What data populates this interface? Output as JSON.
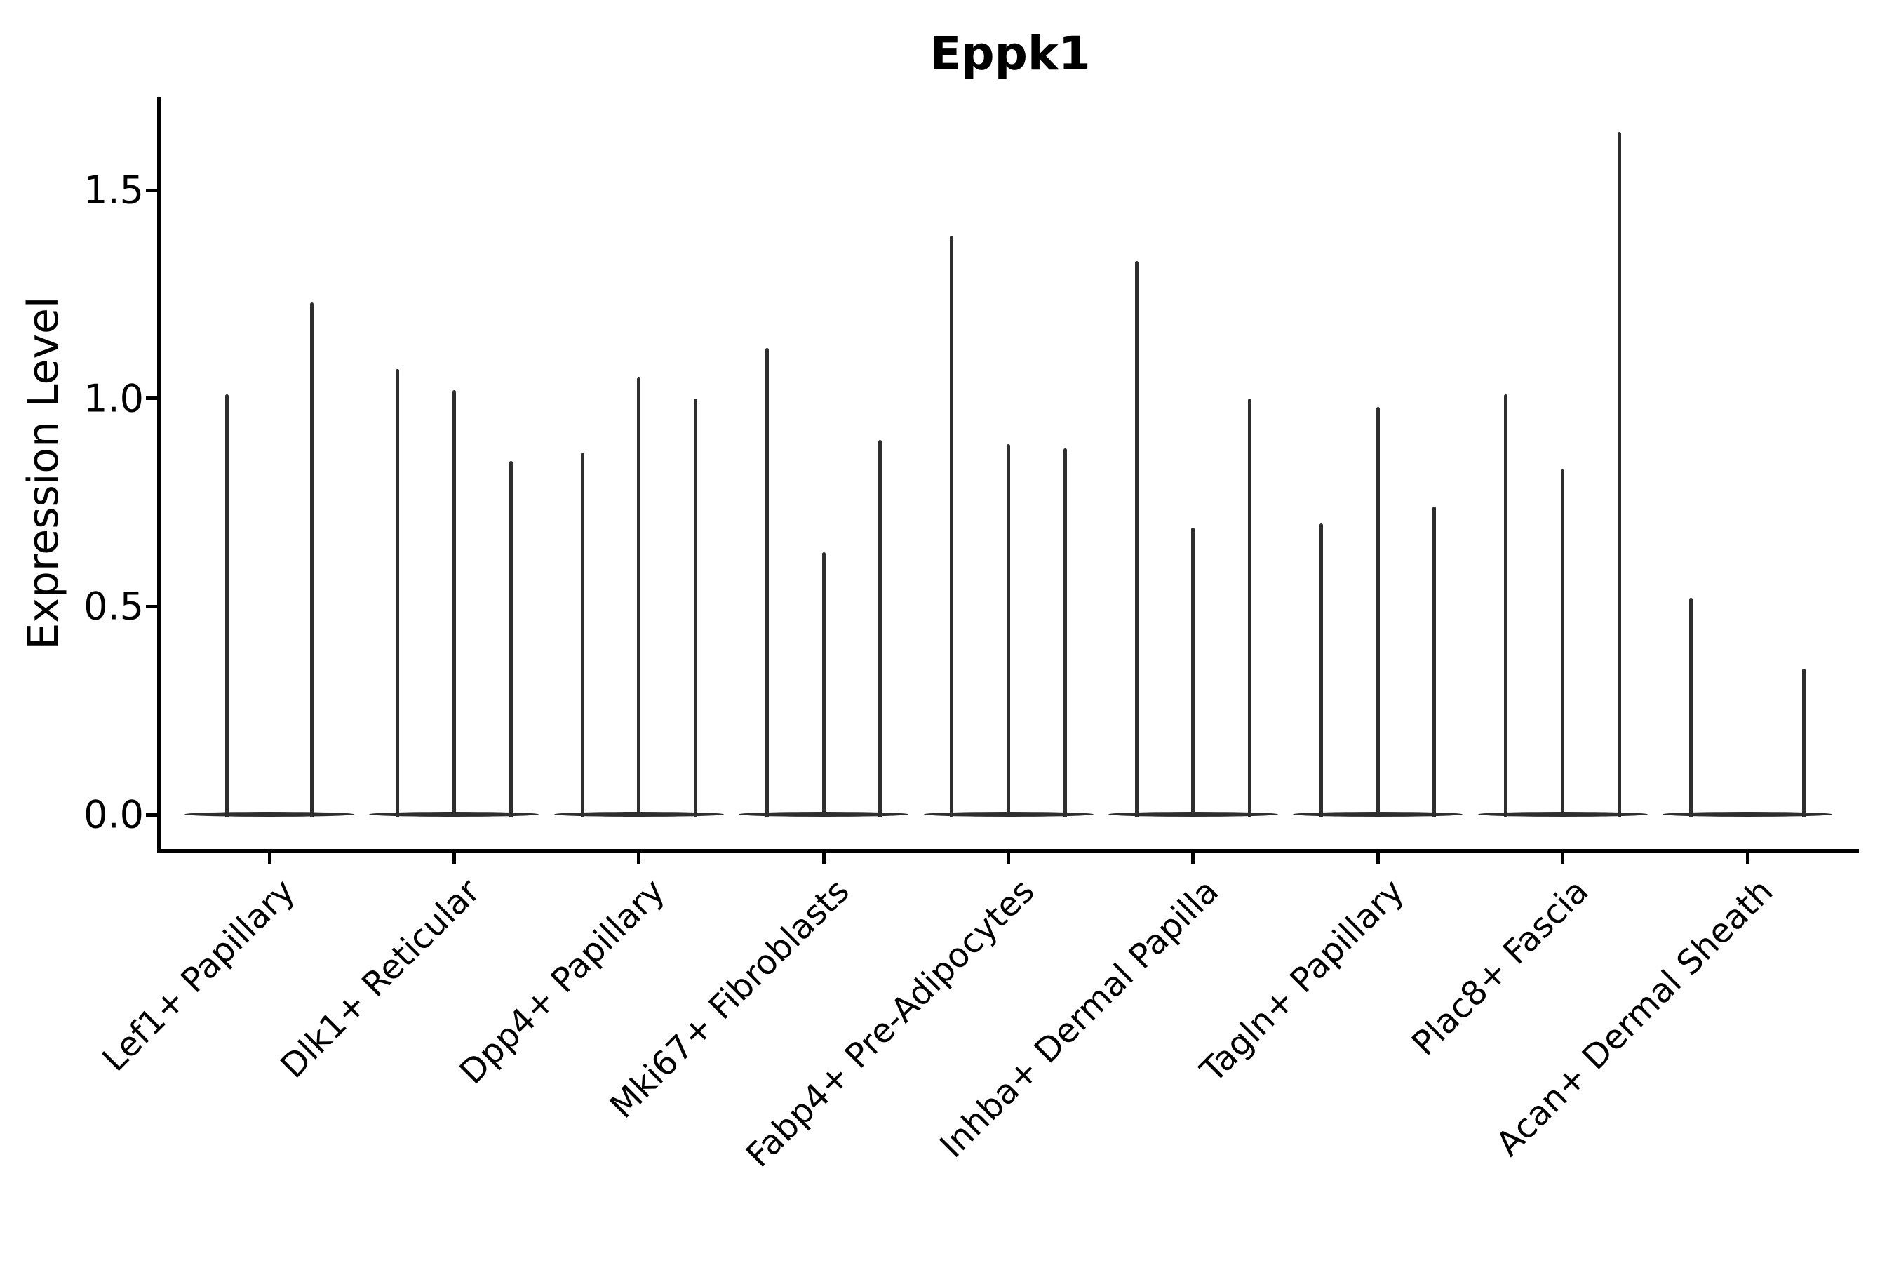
{
  "title": "Eppk1",
  "y_axis": {
    "label": "Expression Level",
    "tick_labels": [
      "0.0",
      "0.5",
      "1.0",
      "1.5"
    ]
  },
  "x_axis": {
    "tick_labels": [
      "Lef1+ Papillary",
      "Dlk1+ Reticular",
      "Dpp4+ Papillary",
      "Mki67+ Fibroblasts",
      "Fabp4+ Pre-Adipocytes",
      "Inhba+ Dermal Papilla",
      "Tagln+ Papillary",
      "Plac8+ Fascia",
      "Acan+ Dermal Sheath"
    ]
  },
  "colors": {
    "violin": "#2e2e2e",
    "axis": "#000000",
    "text": "#000000"
  },
  "chart_data": {
    "type": "violin",
    "title": "Eppk1",
    "xlabel": "",
    "ylabel": "Expression Level",
    "ylim": [
      0,
      1.72
    ],
    "yticks": [
      0.0,
      0.5,
      1.0,
      1.5
    ],
    "grid": false,
    "legend": null,
    "description": "Stacked-violin style gene expression plot; every violin is collapsed at 0 with a thin spike up to its maximum expression value; 2-3 grouped violins per cell-type category",
    "categories": [
      "Lef1+ Papillary",
      "Dlk1+ Reticular",
      "Dpp4+ Papillary",
      "Mki67+ Fibroblasts",
      "Fabp4+ Pre-Adipocytes",
      "Inhba+ Dermal Papilla",
      "Tagln+ Papillary",
      "Plac8+ Fascia",
      "Acan+ Dermal Sheath"
    ],
    "violin_groups": [
      {
        "category": "Lef1+ Papillary",
        "spike_maxima": [
          1.01,
          1.23
        ]
      },
      {
        "category": "Dlk1+ Reticular",
        "spike_maxima": [
          1.07,
          1.02,
          0.85
        ]
      },
      {
        "category": "Dpp4+ Papillary",
        "spike_maxima": [
          0.87,
          1.05,
          1.0
        ]
      },
      {
        "category": "Mki67+ Fibroblasts",
        "spike_maxima": [
          1.12,
          0.63,
          0.9
        ]
      },
      {
        "category": "Fabp4+ Pre-Adipocytes",
        "spike_maxima": [
          1.39,
          0.89,
          0.88
        ]
      },
      {
        "category": "Inhba+ Dermal Papilla",
        "spike_maxima": [
          1.33,
          0.69,
          1.0
        ]
      },
      {
        "category": "Tagln+ Papillary",
        "spike_maxima": [
          0.7,
          0.98,
          0.74
        ]
      },
      {
        "category": "Plac8+ Fascia",
        "spike_maxima": [
          1.01,
          0.83,
          1.64
        ]
      },
      {
        "category": "Acan+ Dermal Sheath",
        "spike_maxima": [
          0.52,
          0.0,
          0.35
        ]
      }
    ],
    "baseline_value": 0.0
  }
}
